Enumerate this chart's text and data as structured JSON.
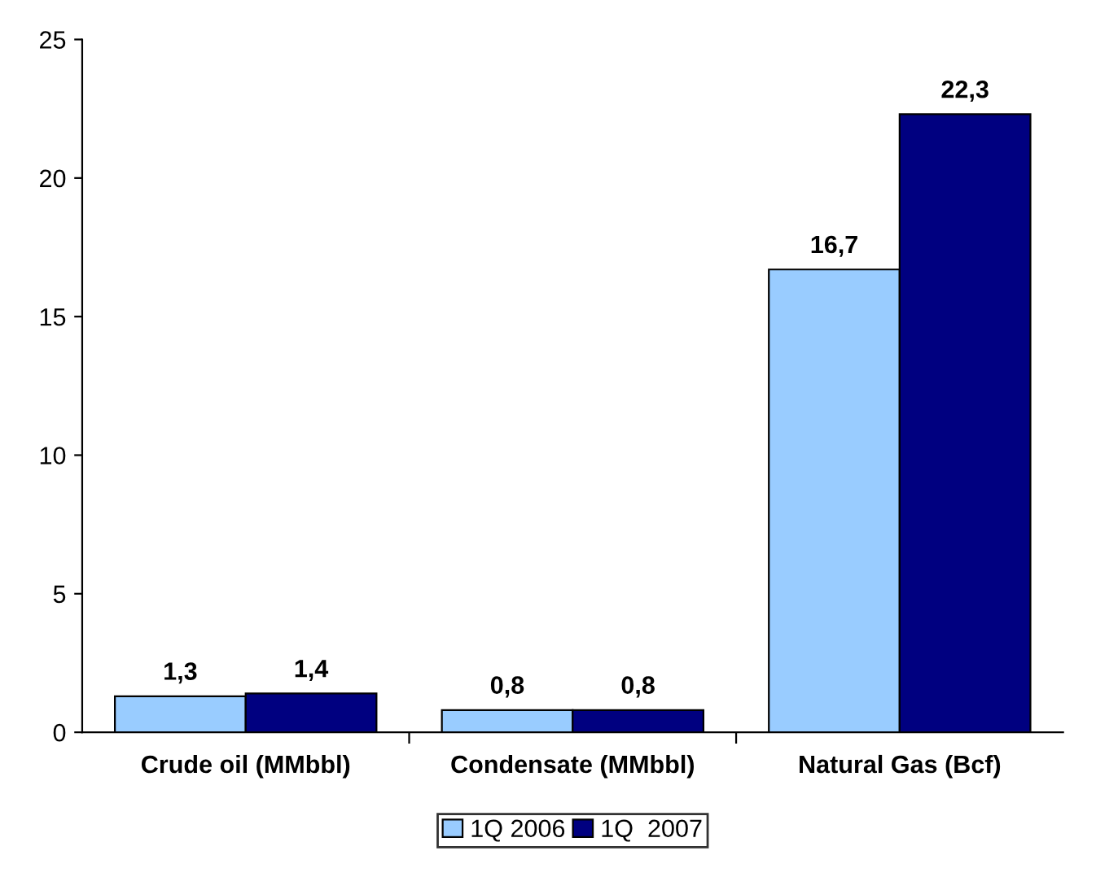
{
  "chart_data": {
    "type": "bar",
    "categories": [
      "Crude oil (MMbbl)",
      "Condensate (MMbbl)",
      "Natural Gas (Bcf)"
    ],
    "series": [
      {
        "name": "1Q 2006",
        "color": "#99ccff",
        "values": [
          1.3,
          0.8,
          16.7
        ],
        "value_labels": [
          "1,3",
          "0,8",
          "16,7"
        ]
      },
      {
        "name": "1Q  2007",
        "color": "#000080",
        "values": [
          1.4,
          0.8,
          22.3
        ],
        "value_labels": [
          "1,4",
          "0,8",
          "22,3"
        ]
      }
    ],
    "ylim": [
      0,
      25
    ],
    "yticks": [
      0,
      5,
      10,
      15,
      20,
      25
    ],
    "grid": false,
    "legend": "bottom"
  }
}
